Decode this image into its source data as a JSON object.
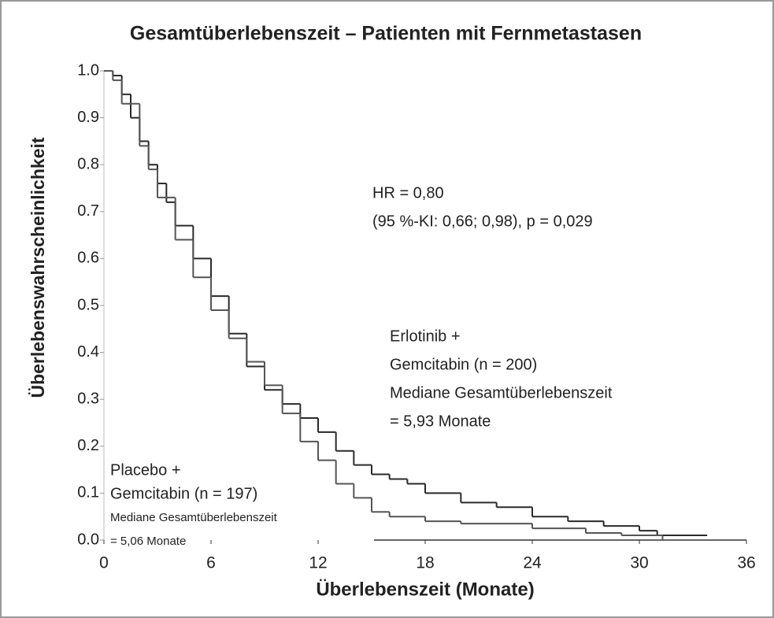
{
  "chart_data": {
    "type": "step",
    "title": "Gesamtüberlebenszeit – Patienten mit Fernmetastasen",
    "x_label": "Überlebenszeit (Monate)",
    "y_label": "Überlebenswahrscheinlichkeit",
    "xlim": [
      0,
      36
    ],
    "xticks": [
      0,
      6,
      12,
      18,
      24,
      30,
      36
    ],
    "ylim": [
      0,
      1
    ],
    "yticks": [
      {
        "value": 0,
        "label": "0.0"
      },
      0.1,
      0.2,
      0.3,
      0.4,
      0.5,
      0.6,
      0.7,
      0.8,
      0.9,
      {
        "value": 1,
        "label": "1.0"
      }
    ],
    "series": [
      {
        "color": "#2a2a2a",
        "x": [
          0,
          0.5,
          1,
          1.5,
          2,
          2.5,
          3,
          3.5,
          4,
          5,
          6,
          7,
          8,
          9,
          10,
          11,
          12,
          13,
          14,
          15,
          16,
          17,
          18,
          20,
          22,
          24,
          26,
          28,
          30,
          31,
          33.8
        ],
        "values": [
          1,
          0.99,
          0.95,
          0.9,
          0.85,
          0.8,
          0.76,
          0.72,
          0.67,
          0.6,
          0.52,
          0.44,
          0.37,
          0.32,
          0.29,
          0.26,
          0.23,
          0.19,
          0.16,
          0.14,
          0.13,
          0.12,
          0.1,
          0.08,
          0.07,
          0.05,
          0.04,
          0.03,
          0.02,
          0.01,
          0.01
        ]
      },
      {
        "color": "#555555",
        "x": [
          0,
          0.5,
          1,
          2,
          2.5,
          3,
          4,
          5,
          6,
          7,
          8,
          9,
          10,
          11,
          12,
          13,
          14,
          15,
          16,
          18,
          20,
          24,
          27,
          29,
          31.3
        ],
        "values": [
          1,
          0.98,
          0.93,
          0.84,
          0.79,
          0.73,
          0.64,
          0.56,
          0.49,
          0.43,
          0.38,
          0.33,
          0.27,
          0.21,
          0.17,
          0.12,
          0.09,
          0.06,
          0.05,
          0.04,
          0.035,
          0.025,
          0.015,
          0.01,
          0
        ]
      }
    ],
    "annotations": {
      "hr": [
        "HR = 0,80",
        "(95 %-KI: 0,66; 0,98), p = 0,029"
      ],
      "erlotinib": [
        "Erlotinib +",
        "Gemcitabin  (n = 200)",
        "Mediane Gesamtüberlebenszeit",
        "= 5,93 Monate"
      ],
      "placebo": [
        "Placebo +",
        "Gemcitabin (n = 197)",
        "Mediane Gesamtüberlebenszeit",
        "= 5,06 Monate"
      ]
    }
  }
}
